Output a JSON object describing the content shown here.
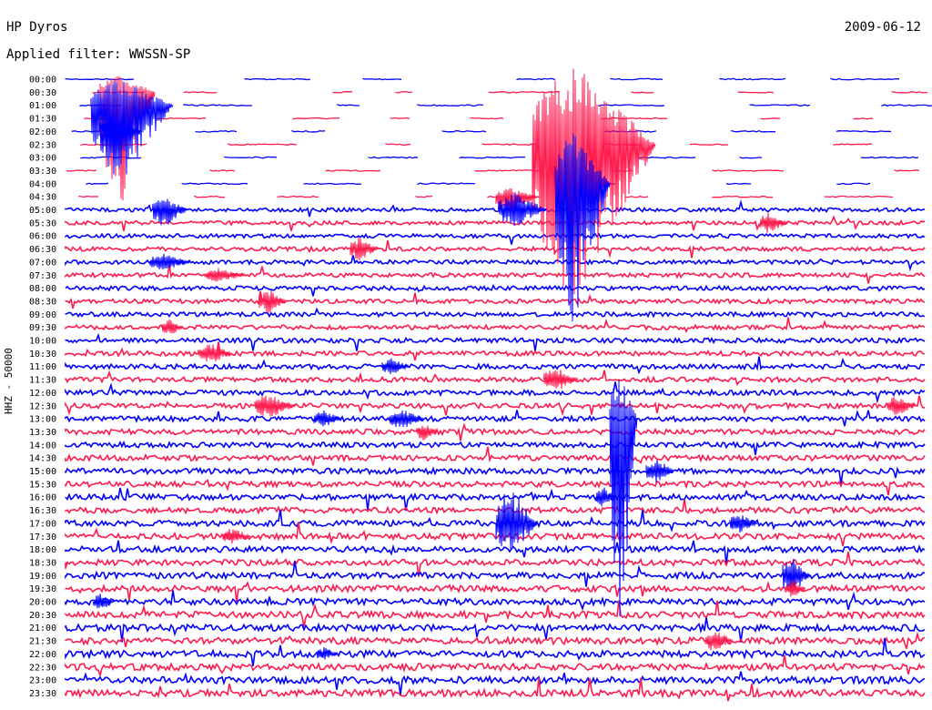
{
  "header": {
    "station": "HP Dyros",
    "date": "2009-06-12",
    "filter": "Applied filter: WWSSN-SP"
  },
  "chart_data": {
    "type": "line",
    "ylabel": "HHZ - 50000",
    "row_labels": [
      "00:00",
      "00:30",
      "01:00",
      "01:30",
      "02:00",
      "02:30",
      "03:00",
      "03:30",
      "04:00",
      "04:30",
      "05:00",
      "05:30",
      "06:00",
      "06:30",
      "07:00",
      "07:30",
      "08:00",
      "08:30",
      "09:00",
      "09:30",
      "10:00",
      "10:30",
      "11:00",
      "11:30",
      "12:00",
      "12:30",
      "13:00",
      "13:30",
      "14:00",
      "14:30",
      "15:00",
      "15:30",
      "16:00",
      "16:30",
      "17:00",
      "17:30",
      "18:00",
      "18:30",
      "19:00",
      "19:30",
      "20:00",
      "20:30",
      "21:00",
      "21:30",
      "22:00",
      "22:30",
      "23:00",
      "23:30"
    ],
    "colors": [
      "#0000ff",
      "#ff1a4d"
    ],
    "grid": false,
    "legend": "none"
  }
}
